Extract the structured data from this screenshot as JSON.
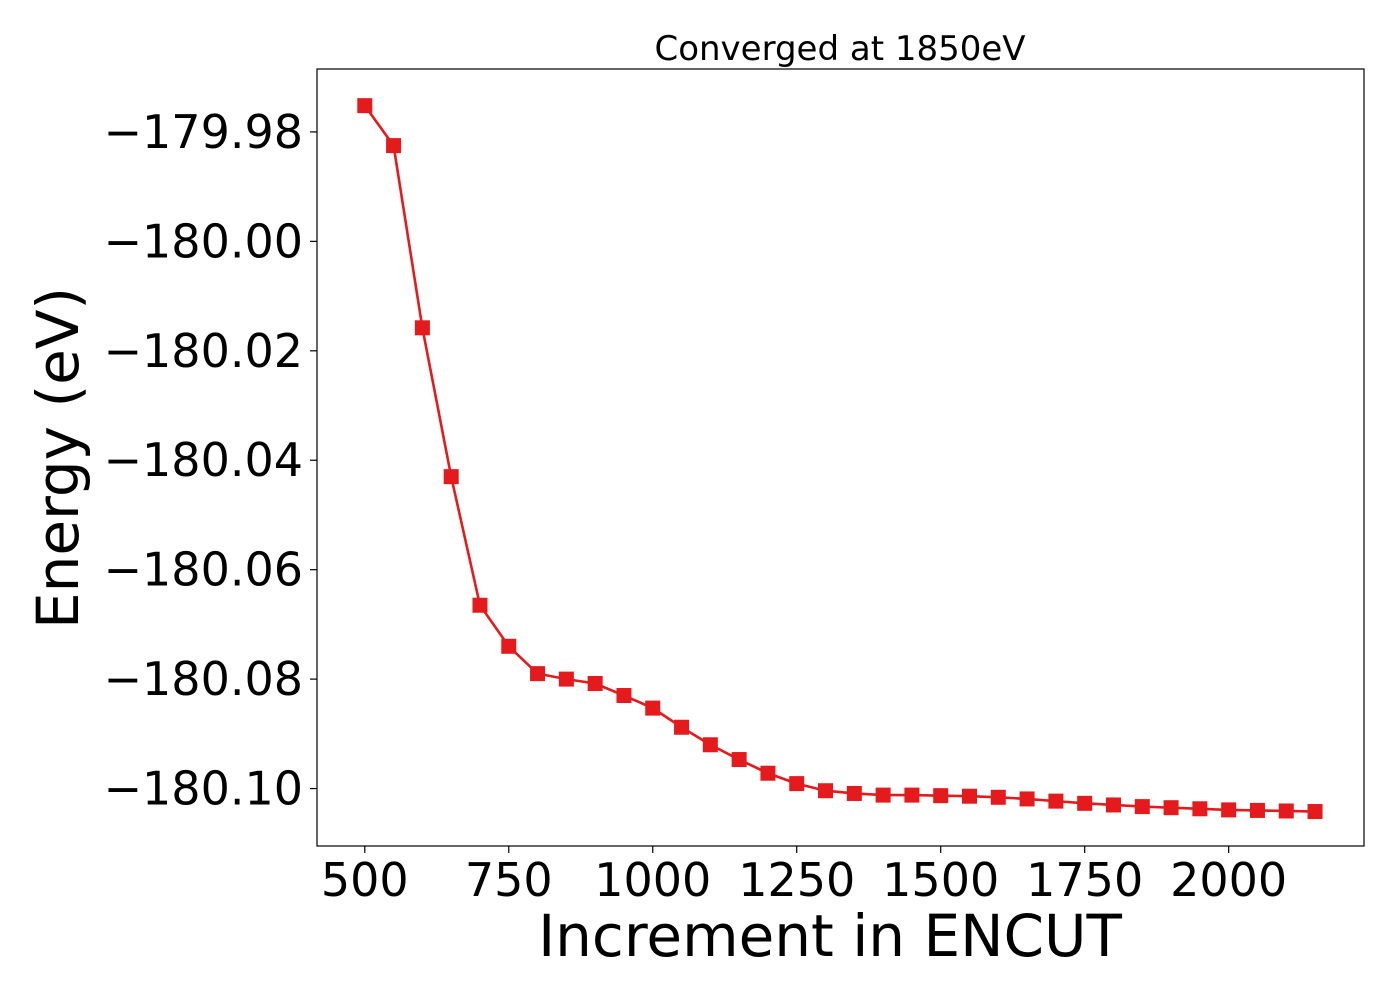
{
  "chart_data": {
    "type": "line",
    "title": "Converged at 1850eV",
    "xlabel": "Increment in ENCUT",
    "ylabel": "Energy (eV)",
    "xlim": [
      417,
      2235
    ],
    "ylim": [
      -180.1105,
      -179.9685
    ],
    "xticks": [
      500,
      750,
      1000,
      1250,
      1500,
      1750,
      2000
    ],
    "xtick_labels": [
      "500",
      "750",
      "1000",
      "1250",
      "1500",
      "1750",
      "2000"
    ],
    "yticks": [
      -179.98,
      -180.0,
      -180.02,
      -180.04,
      -180.06,
      -180.08,
      -180.1
    ],
    "ytick_labels": [
      "−179.98",
      "−180.00",
      "−180.02",
      "−180.04",
      "−180.06",
      "−180.08",
      "−180.10"
    ],
    "grid": false,
    "legend": "none",
    "marker": "square",
    "color": "#e41a1c",
    "series": [
      {
        "x": [
          500,
          550,
          600,
          650,
          700,
          750,
          800,
          850,
          900,
          950,
          1000,
          1050,
          1100,
          1150,
          1200,
          1250,
          1300,
          1350,
          1400,
          1450,
          1500,
          1550,
          1600,
          1650,
          1700,
          1750,
          1800,
          1850,
          1900,
          1950,
          2000,
          2050,
          2100,
          2150
        ],
        "values": [
          -179.9752,
          -179.9825,
          -180.0158,
          -180.043,
          -180.0665,
          -180.074,
          -180.079,
          -180.08,
          -180.0808,
          -180.083,
          -180.0853,
          -180.0888,
          -180.092,
          -180.0947,
          -180.0972,
          -180.0991,
          -180.1004,
          -180.1009,
          -180.1012,
          -180.1012,
          -180.1013,
          -180.1014,
          -180.1016,
          -180.1019,
          -180.1023,
          -180.1027,
          -180.103,
          -180.1033,
          -180.1035,
          -180.1037,
          -180.1039,
          -180.104,
          -180.1041,
          -180.1042
        ]
      }
    ]
  }
}
